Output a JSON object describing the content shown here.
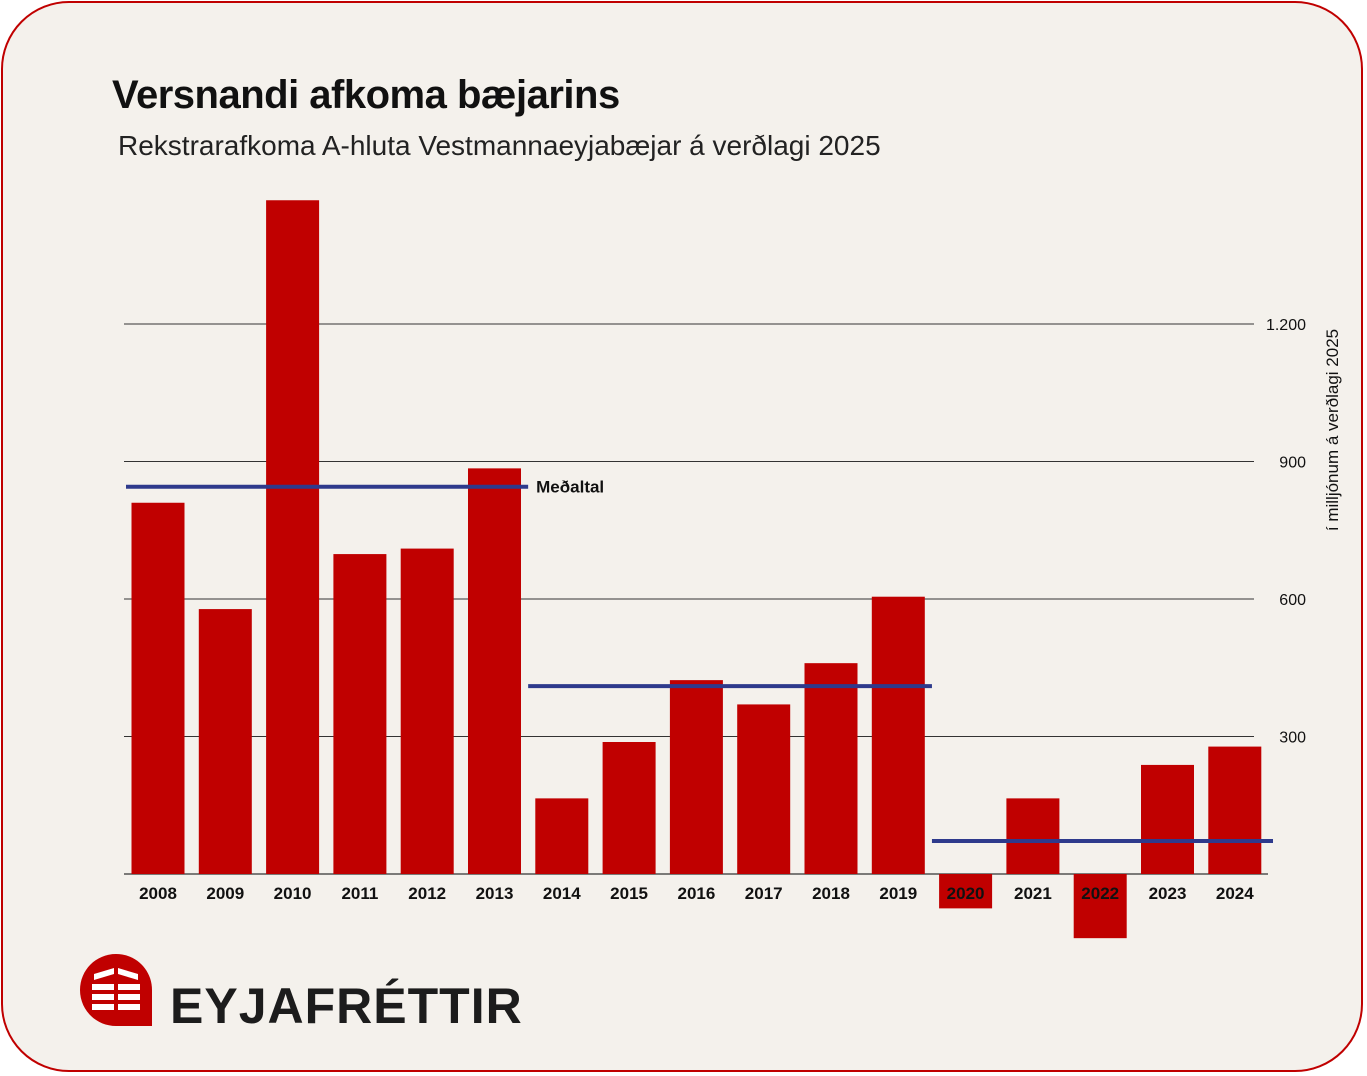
{
  "header": {
    "title": "Versnandi afkoma bæjarins",
    "subtitle": "Rekstrarafkoma A-hluta Vestmannaeyjabæjar á verðlagi 2025"
  },
  "brand": {
    "name": "EYJAFRÉTTIR",
    "logo_icon": "eyjafrettir-logo-icon"
  },
  "colors": {
    "bar": "#c00000",
    "average_line": "#2e3a8c",
    "border": "#c00000",
    "background": "#f4f1ec"
  },
  "chart_data": {
    "type": "bar",
    "title": "Versnandi afkoma bæjarins",
    "subtitle": "Rekstrarafkoma A-hluta Vestmannaeyjabæjar á verðlagi 2025",
    "ylabel": "í milljónum á verðlagi 2025",
    "y_axis_position": "right",
    "ylim": [
      -150,
      1500
    ],
    "yticks": [
      300,
      600,
      900,
      1200
    ],
    "ytick_labels": [
      "300",
      "600",
      "900",
      "1.200"
    ],
    "grid": true,
    "categories": [
      "2008",
      "2009",
      "2010",
      "2011",
      "2012",
      "2013",
      "2014",
      "2015",
      "2016",
      "2017",
      "2018",
      "2019",
      "2020",
      "2021",
      "2022",
      "2023",
      "2024"
    ],
    "values": [
      810,
      578,
      1470,
      698,
      710,
      885,
      165,
      288,
      423,
      370,
      460,
      605,
      -75,
      165,
      -140,
      238,
      278
    ],
    "averages": [
      {
        "label": "Meðaltal",
        "from": "2008",
        "to": "2013",
        "value": 845
      },
      {
        "label": "",
        "from": "2014",
        "to": "2019",
        "value": 410
      },
      {
        "label": "",
        "from": "2020",
        "to": "2024",
        "value": 72
      }
    ]
  }
}
